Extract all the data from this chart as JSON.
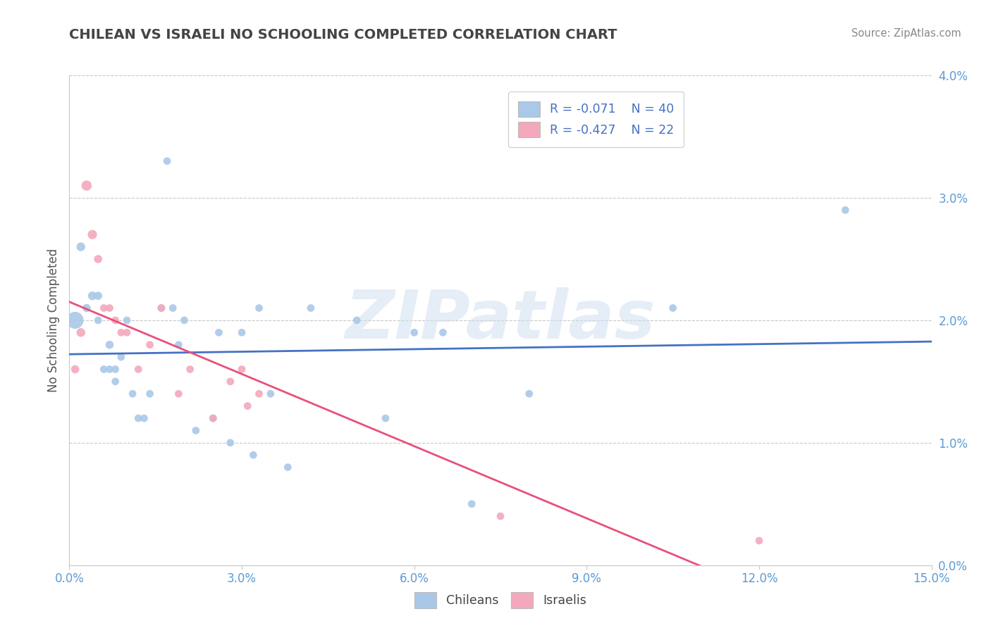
{
  "title": "CHILEAN VS ISRAELI NO SCHOOLING COMPLETED CORRELATION CHART",
  "source": "Source: ZipAtlas.com",
  "ylabel": "No Schooling Completed",
  "watermark": "ZIPatlas",
  "xlim": [
    0.0,
    0.15
  ],
  "ylim": [
    0.0,
    0.04
  ],
  "xticks": [
    0.0,
    0.03,
    0.06,
    0.09,
    0.12,
    0.15
  ],
  "yticks": [
    0.0,
    0.01,
    0.02,
    0.03,
    0.04
  ],
  "chilean_color": "#aac8e8",
  "israeli_color": "#f4a8bc",
  "trendline_chilean_color": "#4472c4",
  "trendline_israeli_color": "#e8507a",
  "legend_box_chilean": "#aac8e8",
  "legend_box_israeli": "#f4a8bc",
  "R_chilean": -0.071,
  "N_chilean": 40,
  "R_israeli": -0.427,
  "N_israeli": 22,
  "chilean_x": [
    0.001,
    0.002,
    0.003,
    0.004,
    0.005,
    0.005,
    0.006,
    0.007,
    0.007,
    0.008,
    0.008,
    0.009,
    0.01,
    0.011,
    0.012,
    0.013,
    0.014,
    0.016,
    0.017,
    0.018,
    0.019,
    0.02,
    0.022,
    0.025,
    0.026,
    0.028,
    0.03,
    0.032,
    0.033,
    0.035,
    0.038,
    0.042,
    0.05,
    0.055,
    0.06,
    0.065,
    0.07,
    0.08,
    0.105,
    0.135
  ],
  "chilean_y": [
    0.02,
    0.026,
    0.021,
    0.022,
    0.022,
    0.02,
    0.016,
    0.018,
    0.016,
    0.016,
    0.015,
    0.017,
    0.02,
    0.014,
    0.012,
    0.012,
    0.014,
    0.021,
    0.033,
    0.021,
    0.018,
    0.02,
    0.011,
    0.012,
    0.019,
    0.01,
    0.019,
    0.009,
    0.021,
    0.014,
    0.008,
    0.021,
    0.02,
    0.012,
    0.019,
    0.019,
    0.005,
    0.014,
    0.021,
    0.029
  ],
  "chilean_size": [
    300,
    80,
    70,
    80,
    70,
    60,
    60,
    70,
    60,
    60,
    60,
    60,
    60,
    60,
    60,
    60,
    60,
    60,
    60,
    60,
    60,
    60,
    60,
    60,
    60,
    60,
    60,
    60,
    60,
    60,
    60,
    60,
    60,
    60,
    60,
    60,
    60,
    60,
    60,
    60
  ],
  "israeli_x": [
    0.001,
    0.002,
    0.003,
    0.004,
    0.005,
    0.006,
    0.007,
    0.008,
    0.009,
    0.01,
    0.012,
    0.014,
    0.016,
    0.019,
    0.021,
    0.025,
    0.028,
    0.03,
    0.031,
    0.033,
    0.075,
    0.12
  ],
  "israeli_y": [
    0.016,
    0.019,
    0.031,
    0.027,
    0.025,
    0.021,
    0.021,
    0.02,
    0.019,
    0.019,
    0.016,
    0.018,
    0.021,
    0.014,
    0.016,
    0.012,
    0.015,
    0.016,
    0.013,
    0.014,
    0.004,
    0.002
  ],
  "israeli_size": [
    70,
    80,
    110,
    90,
    70,
    60,
    60,
    60,
    60,
    60,
    60,
    60,
    60,
    60,
    60,
    60,
    60,
    60,
    60,
    60,
    60,
    60
  ]
}
